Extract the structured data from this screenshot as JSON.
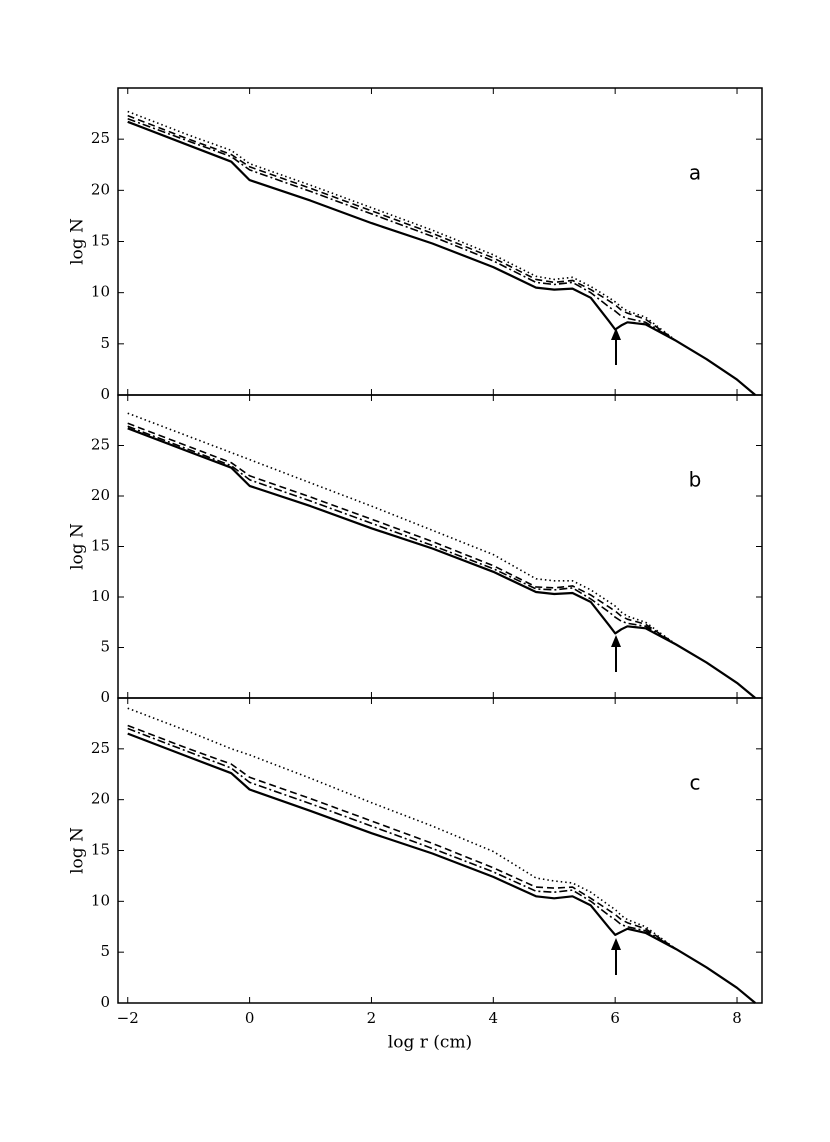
{
  "chart_data": [
    {
      "type": "line",
      "panel_label": "a",
      "y_label": "log N",
      "x": [
        -2,
        -1,
        -0.3,
        0,
        1,
        2,
        3,
        4,
        4.7,
        5,
        5.3,
        5.6,
        5.9,
        6,
        6.1,
        6.2,
        6.5,
        7,
        7.5,
        8,
        8.3
      ],
      "xlim": [
        -2.16,
        8.41
      ],
      "ylim": [
        0,
        30
      ],
      "xticks": [
        {
          "value": -2,
          "label": "−2"
        },
        0,
        2,
        4,
        6,
        8
      ],
      "yticks": [
        0,
        5,
        10,
        15,
        20,
        25
      ],
      "series": [
        {
          "color": "#000000",
          "style": "solid",
          "values": [
            26.7,
            24.4,
            22.8,
            21.0,
            19.0,
            16.8,
            14.8,
            12.5,
            10.5,
            10.3,
            10.4,
            9.5,
            7.2,
            6.4,
            6.8,
            7.1,
            6.9,
            5.3,
            3.5,
            1.5,
            0
          ]
        },
        {
          "color": "#000000",
          "style": "dashed",
          "values": [
            27.3,
            25.0,
            23.5,
            22.3,
            20.2,
            18.0,
            15.8,
            13.4,
            11.3,
            11.0,
            11.2,
            10.3,
            9.2,
            8.8,
            8.3,
            8.0,
            7.4,
            5.3,
            null,
            null,
            null
          ]
        },
        {
          "color": "#000000",
          "style": "dashdot",
          "values": [
            27.0,
            24.8,
            23.3,
            22.0,
            19.9,
            17.7,
            15.5,
            13.1,
            11.0,
            10.8,
            11.0,
            10.0,
            8.6,
            8.2,
            7.7,
            7.5,
            7.1,
            5.3,
            null,
            null,
            null
          ]
        },
        {
          "color": "#000000",
          "style": "dotted",
          "values": [
            27.7,
            25.4,
            23.9,
            22.6,
            20.5,
            18.3,
            16.1,
            13.7,
            11.6,
            11.3,
            11.5,
            10.6,
            9.5,
            9.1,
            8.6,
            8.2,
            7.6,
            5.3,
            null,
            null,
            null
          ]
        }
      ]
    },
    {
      "type": "line",
      "panel_label": "b",
      "y_label": "log N",
      "x": [
        -2,
        -1,
        -0.3,
        0,
        1,
        2,
        3,
        4,
        4.7,
        5,
        5.3,
        5.6,
        5.9,
        6,
        6.1,
        6.2,
        6.5,
        7,
        7.5,
        8,
        8.3
      ],
      "xlim": [
        -2.16,
        8.41
      ],
      "ylim": [
        0,
        30
      ],
      "xticks": [
        {
          "value": -2,
          "label": "−2"
        },
        0,
        2,
        4,
        6,
        8
      ],
      "yticks": [
        0,
        5,
        10,
        15,
        20,
        25
      ],
      "series": [
        {
          "color": "#000000",
          "style": "solid",
          "values": [
            26.7,
            24.4,
            22.8,
            21.0,
            19.0,
            16.8,
            14.8,
            12.5,
            10.5,
            10.3,
            10.4,
            9.5,
            7.2,
            6.4,
            6.8,
            7.1,
            6.9,
            5.3,
            3.5,
            1.5,
            0
          ]
        },
        {
          "color": "#000000",
          "style": "dashed",
          "values": [
            27.2,
            24.9,
            23.3,
            22.0,
            19.9,
            17.7,
            15.5,
            13.1,
            11.0,
            10.9,
            11.1,
            10.2,
            9.0,
            8.6,
            8.1,
            7.8,
            7.3,
            5.3,
            null,
            null,
            null
          ]
        },
        {
          "color": "#000000",
          "style": "dashdot",
          "values": [
            26.9,
            24.6,
            23.0,
            21.6,
            19.5,
            17.3,
            15.1,
            12.8,
            10.8,
            10.7,
            10.9,
            9.8,
            8.5,
            8.0,
            7.6,
            7.4,
            7.1,
            5.3,
            null,
            null,
            null
          ]
        },
        {
          "color": "#000000",
          "style": "dotted",
          "values": [
            28.2,
            25.9,
            24.3,
            23.6,
            21.3,
            19.0,
            16.6,
            14.2,
            11.8,
            11.6,
            11.6,
            10.7,
            9.5,
            9.1,
            8.5,
            8.1,
            7.5,
            5.3,
            null,
            null,
            null
          ]
        }
      ]
    },
    {
      "type": "line",
      "panel_label": "c",
      "y_label": "log N",
      "x_label": "log r (cm)",
      "x": [
        -2,
        -1,
        -0.3,
        0,
        1,
        2,
        3,
        4,
        4.7,
        5,
        5.3,
        5.6,
        5.9,
        6,
        6.1,
        6.2,
        6.5,
        7,
        7.5,
        8,
        8.3
      ],
      "xlim": [
        -2.16,
        8.41
      ],
      "ylim": [
        0,
        30
      ],
      "xticks": [
        {
          "value": -2,
          "label": "−2"
        },
        0,
        2,
        4,
        6,
        8
      ],
      "yticks": [
        0,
        5,
        10,
        15,
        20,
        25
      ],
      "series": [
        {
          "color": "#000000",
          "style": "solid",
          "values": [
            26.5,
            24.2,
            22.6,
            21.0,
            18.9,
            16.7,
            14.7,
            12.4,
            10.5,
            10.3,
            10.5,
            9.6,
            7.4,
            6.7,
            7.0,
            7.3,
            6.9,
            5.3,
            3.5,
            1.5,
            0
          ]
        },
        {
          "color": "#000000",
          "style": "dashed",
          "values": [
            27.3,
            25.0,
            23.5,
            22.2,
            20.1,
            17.9,
            15.7,
            13.3,
            11.4,
            11.3,
            11.4,
            10.3,
            9.1,
            8.7,
            8.2,
            7.9,
            7.3,
            5.3,
            null,
            null,
            null
          ]
        },
        {
          "color": "#000000",
          "style": "dashdot",
          "values": [
            27.0,
            24.7,
            23.1,
            21.7,
            19.6,
            17.4,
            15.2,
            12.9,
            11.0,
            10.9,
            11.1,
            10.0,
            8.6,
            8.2,
            7.7,
            7.5,
            7.1,
            5.3,
            null,
            null,
            null
          ]
        },
        {
          "color": "#000000",
          "style": "dotted",
          "values": [
            29.0,
            26.7,
            25.0,
            24.4,
            22.1,
            19.7,
            17.4,
            14.9,
            12.3,
            12.0,
            11.8,
            10.9,
            9.6,
            9.2,
            8.6,
            8.2,
            7.5,
            5.3,
            null,
            null,
            null
          ]
        }
      ]
    }
  ]
}
